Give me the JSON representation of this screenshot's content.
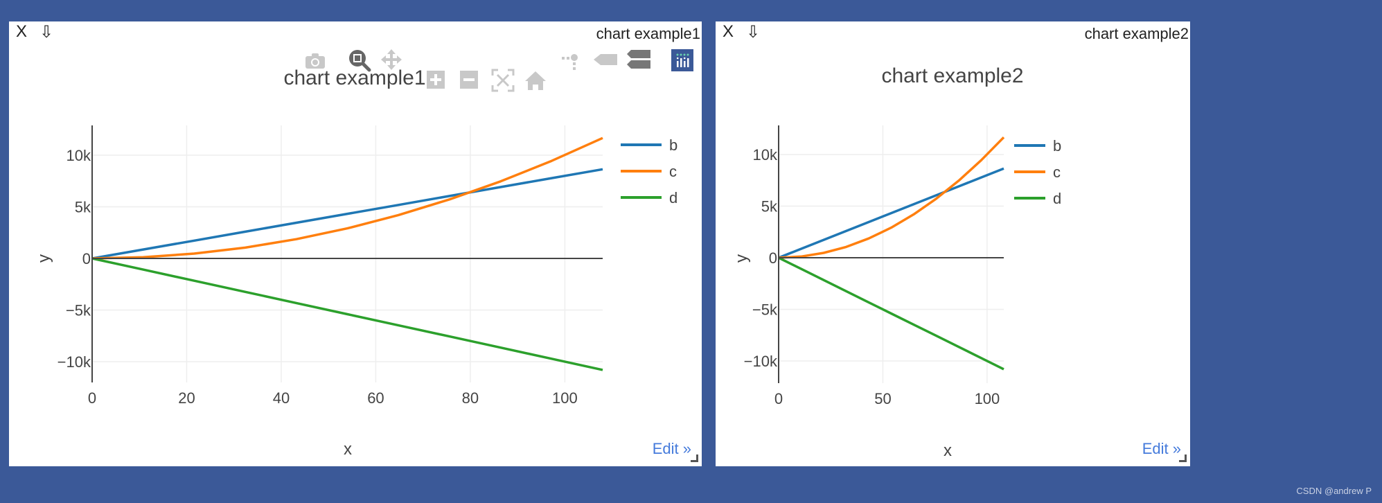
{
  "background_color": "#3b5998",
  "watermark": "CSDN @andrew P",
  "panels": [
    {
      "close_label": "X",
      "download_icon": "⇩",
      "name": "chart example1",
      "edit_label": "Edit »",
      "modebar": [
        "camera-icon",
        "zoom-icon",
        "pan-icon",
        "zoom-in-icon",
        "zoom-out-icon",
        "autoscale-icon",
        "reset-axes-icon",
        "spike-lines-icon",
        "hover-closest-icon",
        "hover-compare-icon",
        "plotly-logo-icon"
      ]
    },
    {
      "close_label": "X",
      "download_icon": "⇩",
      "name": "chart example2",
      "edit_label": "Edit »"
    }
  ],
  "chart_data": [
    {
      "type": "line",
      "title": "chart example1",
      "xlabel": "x",
      "ylabel": "y",
      "x": [
        0,
        10.8,
        21.6,
        32.4,
        43.2,
        54,
        64.8,
        75.6,
        86.4,
        97.2,
        108
      ],
      "series": [
        {
          "name": "b",
          "color": "#1f77b4",
          "values": [
            0,
            864,
            1728,
            2592,
            3456,
            4320,
            5184,
            6048,
            6912,
            7776,
            8640
          ]
        },
        {
          "name": "c",
          "color": "#ff7f0e",
          "values": [
            0,
            117,
            467,
            1050,
            1866,
            2916,
            4199,
            5715,
            7465,
            9448,
            11664
          ]
        },
        {
          "name": "d",
          "color": "#2ca02c",
          "values": [
            0,
            -1080,
            -2160,
            -3240,
            -4320,
            -5400,
            -6480,
            -7560,
            -8640,
            -9720,
            -10800
          ]
        }
      ],
      "xticks": [
        "0",
        "20",
        "40",
        "60",
        "80",
        "100"
      ],
      "xtick_values": [
        0,
        20,
        40,
        60,
        80,
        100
      ],
      "yticks": [
        "−10k",
        "−5k",
        "0",
        "5k",
        "10k"
      ],
      "ytick_values": [
        -10000,
        -5000,
        0,
        5000,
        10000
      ],
      "xlim": [
        0,
        108
      ],
      "ylim": [
        -12000,
        12900
      ],
      "grid": true,
      "legend_position": "right"
    },
    {
      "type": "line",
      "title": "chart example2",
      "xlabel": "x",
      "ylabel": "y",
      "x": [
        0,
        10.8,
        21.6,
        32.4,
        43.2,
        54,
        64.8,
        75.6,
        86.4,
        97.2,
        108
      ],
      "series": [
        {
          "name": "b",
          "color": "#1f77b4",
          "values": [
            0,
            864,
            1728,
            2592,
            3456,
            4320,
            5184,
            6048,
            6912,
            7776,
            8640
          ]
        },
        {
          "name": "c",
          "color": "#ff7f0e",
          "values": [
            0,
            117,
            467,
            1050,
            1866,
            2916,
            4199,
            5715,
            7465,
            9448,
            11664
          ]
        },
        {
          "name": "d",
          "color": "#2ca02c",
          "values": [
            0,
            -1080,
            -2160,
            -3240,
            -4320,
            -5400,
            -6480,
            -7560,
            -8640,
            -9720,
            -10800
          ]
        }
      ],
      "xticks": [
        "0",
        "50",
        "100"
      ],
      "xtick_values": [
        0,
        50,
        100
      ],
      "yticks": [
        "−10k",
        "−5k",
        "0",
        "5k",
        "10k"
      ],
      "ytick_values": [
        -10000,
        -5000,
        0,
        5000,
        10000
      ],
      "xlim": [
        0,
        108
      ],
      "ylim": [
        -12000,
        12900
      ],
      "grid": true,
      "legend_position": "right"
    }
  ]
}
